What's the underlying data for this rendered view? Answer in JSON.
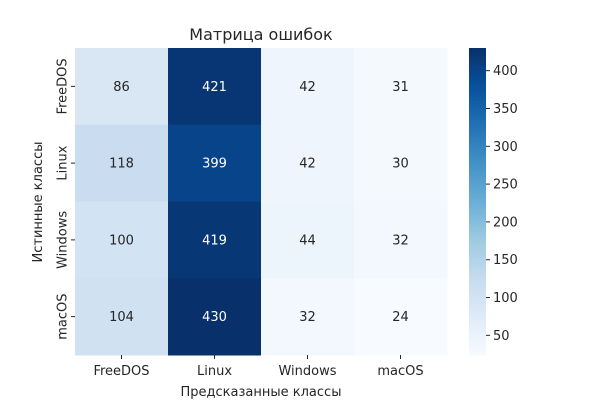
{
  "chart_data": {
    "type": "heatmap",
    "title": "Матрица ошибок",
    "xlabel": "Предсказанные классы",
    "ylabel": "Истинные классы",
    "x_categories": [
      "FreeDOS",
      "Linux",
      "Windows",
      "macOS"
    ],
    "y_categories": [
      "FreeDOS",
      "Linux",
      "Windows",
      "macOS"
    ],
    "values": [
      [
        86,
        421,
        42,
        31
      ],
      [
        118,
        399,
        42,
        30
      ],
      [
        100,
        419,
        44,
        32
      ],
      [
        104,
        430,
        32,
        24
      ]
    ],
    "colormap": "Blues",
    "color_range": [
      24,
      430
    ],
    "colorbar_ticks": [
      50,
      100,
      150,
      200,
      250,
      300,
      350,
      400
    ],
    "annotations": true
  }
}
